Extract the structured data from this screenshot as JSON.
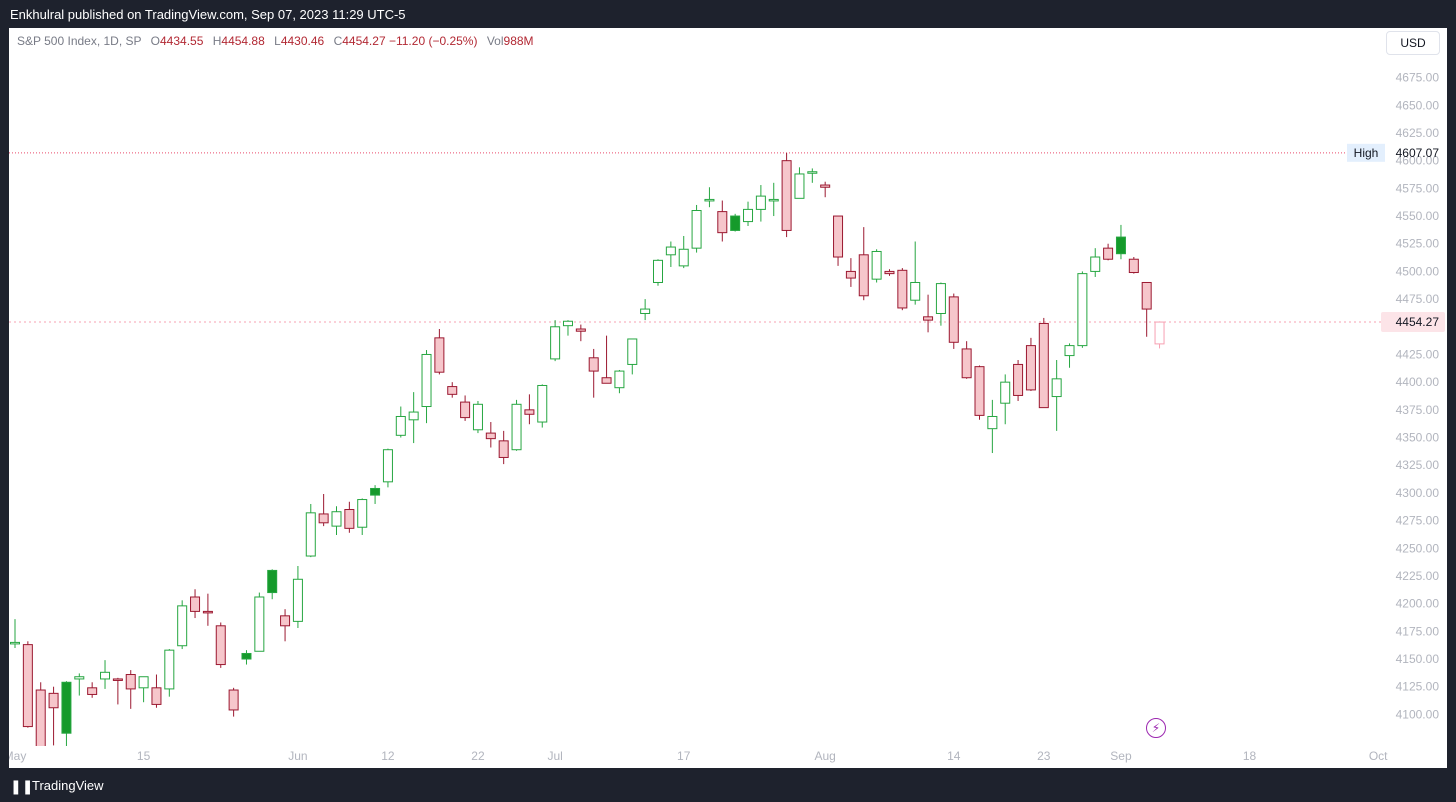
{
  "header": {
    "published_text": "Enkhulral published on TradingView.com, Sep 07, 2023 11:29 UTC-5"
  },
  "legend": {
    "symbol": "S&P 500 Index, 1D, SP",
    "open_label": "O",
    "open": "4434.55",
    "high_label": "H",
    "high": "4454.88",
    "low_label": "L",
    "low": "4430.46",
    "close_label": "C",
    "close": "4454.27",
    "change": "−11.20 (−0.25%)",
    "volume_label": "Vol",
    "volume": "988M"
  },
  "currency_button": "USD",
  "footer": {
    "brand": "TradingView",
    "brand_icon": "tradingview-logo-icon"
  },
  "colors": {
    "up": "#089981",
    "up_border": "#26a641",
    "up_fill": "#159a2b",
    "down_border": "#9b1830",
    "down_fill": "#f6c6cb",
    "high_line": "#e94a6b",
    "last_line": "#f7a0b2",
    "last_tag_bg": "#fce4e8"
  },
  "chart_data": {
    "type": "candlestick",
    "symbol": "S&P 500 Index",
    "interval": "1D",
    "ylim": [
      4085,
      4690
    ],
    "y_ticks": [
      4100,
      4125,
      4150,
      4175,
      4200,
      4225,
      4250,
      4275,
      4300,
      4325,
      4350,
      4375,
      4400,
      4425,
      4450,
      4475,
      4500,
      4525,
      4550,
      4575,
      4600,
      4625,
      4650,
      4675
    ],
    "x_ticks": [
      {
        "label": "May",
        "index": 0
      },
      {
        "label": "15",
        "index": 10
      },
      {
        "label": "Jun",
        "index": 22
      },
      {
        "label": "12",
        "index": 29
      },
      {
        "label": "22",
        "index": 36
      },
      {
        "label": "Jul",
        "index": 42
      },
      {
        "label": "17",
        "index": 52
      },
      {
        "label": "Aug",
        "index": 63
      },
      {
        "label": "14",
        "index": 73
      },
      {
        "label": "23",
        "index": 80
      },
      {
        "label": "Sep",
        "index": 86
      },
      {
        "label": "18",
        "index": 96
      },
      {
        "label": "Oct",
        "index": 106
      }
    ],
    "high_marker": {
      "label": "High",
      "value": 4607.07
    },
    "last_price": {
      "label": "4454.27",
      "value": 4454.27
    },
    "candles": [
      {
        "o": 4165,
        "h": 4186,
        "l": 4160,
        "c": 4165
      },
      {
        "o": 4163,
        "h": 4166,
        "l": 4088,
        "c": 4089
      },
      {
        "o": 4122,
        "h": 4129,
        "l": 4048,
        "c": 4061
      },
      {
        "o": 4119,
        "h": 4125,
        "l": 4072,
        "c": 4106
      },
      {
        "o": 4083,
        "h": 4130,
        "l": 4055,
        "c": 4129
      },
      {
        "o": 4132,
        "h": 4137,
        "l": 4117,
        "c": 4134
      },
      {
        "o": 4124,
        "h": 4129,
        "l": 4115,
        "c": 4118
      },
      {
        "o": 4132,
        "h": 4149,
        "l": 4123,
        "c": 4138
      },
      {
        "o": 4132,
        "h": 4133,
        "l": 4109,
        "c": 4131
      },
      {
        "o": 4136,
        "h": 4140,
        "l": 4105,
        "c": 4123
      },
      {
        "o": 4124,
        "h": 4134,
        "l": 4111,
        "c": 4134
      },
      {
        "o": 4124,
        "h": 4136,
        "l": 4106,
        "c": 4109
      },
      {
        "o": 4123,
        "h": 4159,
        "l": 4116,
        "c": 4158
      },
      {
        "o": 4162,
        "h": 4203,
        "l": 4159,
        "c": 4198
      },
      {
        "o": 4206,
        "h": 4213,
        "l": 4187,
        "c": 4193
      },
      {
        "o": 4193,
        "h": 4209,
        "l": 4180,
        "c": 4192
      },
      {
        "o": 4180,
        "h": 4183,
        "l": 4142,
        "c": 4145
      },
      {
        "o": 4122,
        "h": 4124,
        "l": 4098,
        "c": 4104
      },
      {
        "o": 4150,
        "h": 4158,
        "l": 4145,
        "c": 4155
      },
      {
        "o": 4157,
        "h": 4210,
        "l": 4157,
        "c": 4206
      },
      {
        "o": 4210,
        "h": 4231,
        "l": 4204,
        "c": 4230
      },
      {
        "o": 4189,
        "h": 4195,
        "l": 4166,
        "c": 4180
      },
      {
        "o": 4184,
        "h": 4234,
        "l": 4178,
        "c": 4222
      },
      {
        "o": 4243,
        "h": 4290,
        "l": 4242,
        "c": 4282
      },
      {
        "o": 4281,
        "h": 4299,
        "l": 4270,
        "c": 4273
      },
      {
        "o": 4270,
        "h": 4288,
        "l": 4262,
        "c": 4283
      },
      {
        "o": 4285,
        "h": 4292,
        "l": 4264,
        "c": 4268
      },
      {
        "o": 4269,
        "h": 4295,
        "l": 4262,
        "c": 4294
      },
      {
        "o": 4298,
        "h": 4307,
        "l": 4290,
        "c": 4304
      },
      {
        "o": 4310,
        "h": 4340,
        "l": 4305,
        "c": 4339
      },
      {
        "o": 4352,
        "h": 4378,
        "l": 4350,
        "c": 4369
      },
      {
        "o": 4366,
        "h": 4391,
        "l": 4345,
        "c": 4373
      },
      {
        "o": 4378,
        "h": 4429,
        "l": 4363,
        "c": 4425
      },
      {
        "o": 4440,
        "h": 4448,
        "l": 4407,
        "c": 4409
      },
      {
        "o": 4396,
        "h": 4400,
        "l": 4386,
        "c": 4389
      },
      {
        "o": 4382,
        "h": 4388,
        "l": 4365,
        "c": 4368
      },
      {
        "o": 4357,
        "h": 4383,
        "l": 4354,
        "c": 4380
      },
      {
        "o": 4354,
        "h": 4364,
        "l": 4341,
        "c": 4349
      },
      {
        "o": 4347,
        "h": 4356,
        "l": 4326,
        "c": 4332
      },
      {
        "o": 4339,
        "h": 4384,
        "l": 4338,
        "c": 4380
      },
      {
        "o": 4375,
        "h": 4389,
        "l": 4362,
        "c": 4371
      },
      {
        "o": 4364,
        "h": 4398,
        "l": 4359,
        "c": 4397
      },
      {
        "o": 4421,
        "h": 4456,
        "l": 4419,
        "c": 4450
      },
      {
        "o": 4451,
        "h": 4456,
        "l": 4442,
        "c": 4455
      },
      {
        "o": 4448,
        "h": 4452,
        "l": 4437,
        "c": 4446
      },
      {
        "o": 4422,
        "h": 4430,
        "l": 4386,
        "c": 4410
      },
      {
        "o": 4404,
        "h": 4442,
        "l": 4399,
        "c": 4399
      },
      {
        "o": 4395,
        "h": 4411,
        "l": 4390,
        "c": 4410
      },
      {
        "o": 4416,
        "h": 4438,
        "l": 4407,
        "c": 4439
      },
      {
        "o": 4462,
        "h": 4475,
        "l": 4456,
        "c": 4466
      },
      {
        "o": 4490,
        "h": 4511,
        "l": 4487,
        "c": 4510
      },
      {
        "o": 4515,
        "h": 4527,
        "l": 4504,
        "c": 4522
      },
      {
        "o": 4505,
        "h": 4532,
        "l": 4503,
        "c": 4520
      },
      {
        "o": 4521,
        "h": 4560,
        "l": 4517,
        "c": 4555
      },
      {
        "o": 4564,
        "h": 4576,
        "l": 4558,
        "c": 4565
      },
      {
        "o": 4554,
        "h": 4564,
        "l": 4527,
        "c": 4535
      },
      {
        "o": 4537,
        "h": 4552,
        "l": 4536,
        "c": 4550
      },
      {
        "o": 4545,
        "h": 4563,
        "l": 4541,
        "c": 4556
      },
      {
        "o": 4556,
        "h": 4578,
        "l": 4545,
        "c": 4568
      },
      {
        "o": 4565,
        "h": 4580,
        "l": 4550,
        "c": 4565
      },
      {
        "o": 4600,
        "h": 4607,
        "l": 4531,
        "c": 4537
      },
      {
        "o": 4566,
        "h": 4594,
        "l": 4566,
        "c": 4588
      },
      {
        "o": 4589,
        "h": 4593,
        "l": 4580,
        "c": 4590
      },
      {
        "o": 4578,
        "h": 4581,
        "l": 4567,
        "c": 4576
      },
      {
        "o": 4550,
        "h": 4550,
        "l": 4505,
        "c": 4513
      },
      {
        "o": 4500,
        "h": 4512,
        "l": 4486,
        "c": 4494
      },
      {
        "o": 4515,
        "h": 4540,
        "l": 4474,
        "c": 4478
      },
      {
        "o": 4493,
        "h": 4520,
        "l": 4490,
        "c": 4518
      },
      {
        "o": 4500,
        "h": 4502,
        "l": 4496,
        "c": 4498
      },
      {
        "o": 4501,
        "h": 4503,
        "l": 4465,
        "c": 4467
      },
      {
        "o": 4474,
        "h": 4527,
        "l": 4470,
        "c": 4490
      },
      {
        "o": 4459,
        "h": 4479,
        "l": 4445,
        "c": 4456
      },
      {
        "o": 4462,
        "h": 4490,
        "l": 4451,
        "c": 4489
      },
      {
        "o": 4477,
        "h": 4480,
        "l": 4430,
        "c": 4436
      },
      {
        "o": 4430,
        "h": 4437,
        "l": 4403,
        "c": 4404
      },
      {
        "o": 4414,
        "h": 4415,
        "l": 4366,
        "c": 4370
      },
      {
        "o": 4358,
        "h": 4384,
        "l": 4336,
        "c": 4369
      },
      {
        "o": 4381,
        "h": 4407,
        "l": 4362,
        "c": 4400
      },
      {
        "o": 4416,
        "h": 4420,
        "l": 4383,
        "c": 4388
      },
      {
        "o": 4433,
        "h": 4440,
        "l": 4392,
        "c": 4393
      },
      {
        "o": 4453,
        "h": 4458,
        "l": 4377,
        "c": 4377
      },
      {
        "o": 4387,
        "h": 4420,
        "l": 4356,
        "c": 4403
      },
      {
        "o": 4424,
        "h": 4435,
        "l": 4413,
        "c": 4433
      },
      {
        "o": 4433,
        "h": 4500,
        "l": 4431,
        "c": 4498
      },
      {
        "o": 4500,
        "h": 4521,
        "l": 4495,
        "c": 4513
      },
      {
        "o": 4521,
        "h": 4525,
        "l": 4510,
        "c": 4511
      },
      {
        "o": 4516,
        "h": 4542,
        "l": 4511,
        "c": 4531
      },
      {
        "o": 4511,
        "h": 4513,
        "l": 4498,
        "c": 4499
      },
      {
        "o": 4490,
        "h": 4490,
        "l": 4441,
        "c": 4466
      },
      {
        "o": 4434.55,
        "h": 4454.88,
        "l": 4430.46,
        "c": 4454.27
      }
    ]
  }
}
